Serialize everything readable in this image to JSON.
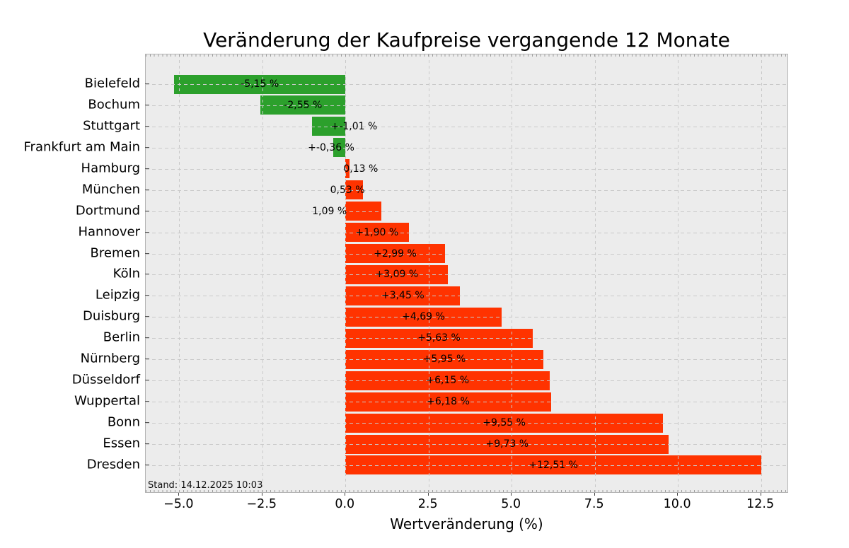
{
  "chart": {
    "title": "Veränderung der Kaufpreise vergangende 12 Monate",
    "xlabel": "Wertveränderung (%)",
    "footnote": "Stand: 14.12.2025 10:03"
  },
  "chart_data": {
    "type": "bar",
    "orientation": "horizontal",
    "title": "Veränderung der Kaufpreise vergangende 12 Monate",
    "xlabel": "Wertveränderung (%)",
    "ylabel": "",
    "grid": "dashed, drawn over bars",
    "legend": "none",
    "xlim": [
      -6.0,
      13.34
    ],
    "x_ticks": [
      {
        "value": -5.0,
        "label": "−5.0"
      },
      {
        "value": -2.5,
        "label": "−2.5"
      },
      {
        "value": 0.0,
        "label": "0.0"
      },
      {
        "value": 2.5,
        "label": "2.5"
      },
      {
        "value": 5.0,
        "label": "5.0"
      },
      {
        "value": 7.5,
        "label": "7.5"
      },
      {
        "value": 10.0,
        "label": "10.0"
      },
      {
        "value": 12.5,
        "label": "12.5"
      }
    ],
    "colors": {
      "positive": "#ff3300",
      "negative": "#2ca02c",
      "plot_bg": "#ececec",
      "grid": "#c9c9c9"
    },
    "categories": [
      "Bielefeld",
      "Bochum",
      "Stuttgart",
      "Frankfurt am Main",
      "Hamburg",
      "München",
      "Dortmund",
      "Hannover",
      "Bremen",
      "Köln",
      "Leipzig",
      "Duisburg",
      "Berlin",
      "Nürnberg",
      "Düsseldorf",
      "Wuppertal",
      "Bonn",
      "Essen",
      "Dresden"
    ],
    "values": [
      -5.15,
      -2.55,
      -1.01,
      -0.36,
      0.13,
      0.53,
      1.09,
      1.9,
      2.99,
      3.09,
      3.45,
      4.69,
      5.63,
      5.95,
      6.15,
      6.18,
      9.55,
      9.73,
      12.51
    ],
    "bar_labels": [
      "-5,15 %",
      "-2,55 %",
      "+-1,01 %",
      "+-0,36 %",
      "0,13 %",
      "0,53 %",
      "1,09 %",
      "+1,90 %",
      "+2,99 %",
      "+3,09 %",
      "+3,45 %",
      "+4,69 %",
      "+5,63 %",
      "+5,95 %",
      "+6,15 %",
      "+6,18 %",
      "+9,55 %",
      "+9,73 %",
      "+12,51 %"
    ],
    "bar_label_center_x": [
      -2.575,
      -1.275,
      0.26,
      -0.43,
      0.46,
      0.06,
      -0.48,
      0.95,
      1.495,
      1.545,
      1.725,
      2.345,
      2.815,
      2.975,
      3.075,
      3.09,
      4.775,
      4.865,
      6.255
    ]
  }
}
